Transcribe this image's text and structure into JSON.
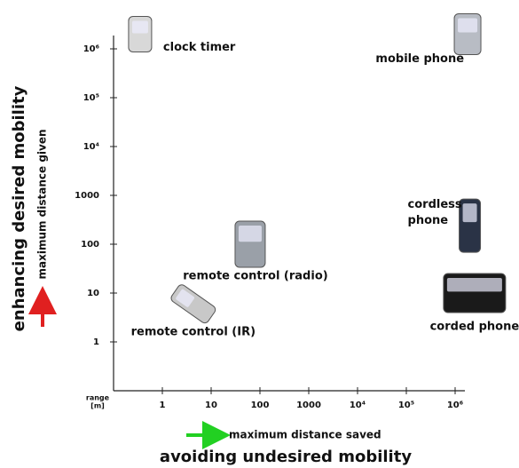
{
  "chart_data": {
    "type": "scatter",
    "x_title": "avoiding undesired mobility",
    "x_subtitle": "maximum distance saved",
    "y_title": "enhancing desired mobility",
    "y_subtitle": "maximum distance given",
    "range_label": "range",
    "unit_label": "[m]",
    "log_x": true,
    "log_y": true,
    "xlim": [
      0.1,
      2000000
    ],
    "ylim": [
      0.1,
      3000000
    ],
    "xticks": [
      1,
      10,
      100,
      1000,
      {
        "value": 10000,
        "label": "10⁴"
      },
      {
        "value": 100000,
        "label": "10⁵"
      },
      {
        "value": 1000000,
        "label": "10⁶"
      }
    ],
    "yticks": [
      1,
      10,
      100,
      1000,
      {
        "value": 10000,
        "label": "10⁴"
      },
      {
        "value": 100000,
        "label": "10⁵"
      },
      {
        "value": 1000000,
        "label": "10⁶"
      }
    ],
    "points": [
      {
        "label": "clock timer",
        "x": 0.35,
        "y": 2000000
      },
      {
        "label": "mobile phone",
        "x": 1800000,
        "y": 2000000
      },
      {
        "label": "cordless phone",
        "x": 2000000,
        "y": 240
      },
      {
        "label": "corded phone",
        "x": 2500000,
        "y": 10
      },
      {
        "label": "remote control (radio)",
        "x": 63,
        "y": 100
      },
      {
        "label": "remote control (IR)",
        "x": 4.3,
        "y": 6
      }
    ]
  }
}
